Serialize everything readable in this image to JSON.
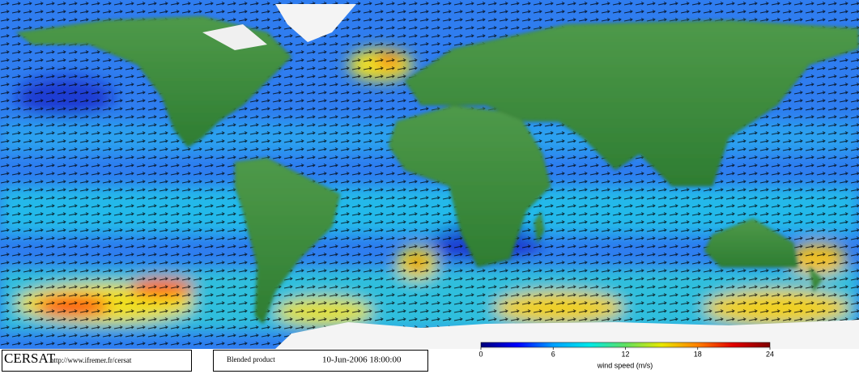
{
  "footer": {
    "logo": "CERSAT",
    "url": "http://www.ifremer.fr/cersat",
    "product": "Blended product",
    "date": "10-Jun-2006 18:00:00"
  },
  "colorbar": {
    "label": "wind speed (m/s)",
    "range": [
      0,
      24
    ],
    "ticks": [
      0,
      6,
      12,
      18,
      24
    ],
    "colors": [
      "#00007a",
      "#0000ff",
      "#00a0ff",
      "#00e8e8",
      "#60e060",
      "#e8e800",
      "#ff8000",
      "#e00000",
      "#800000"
    ]
  }
}
